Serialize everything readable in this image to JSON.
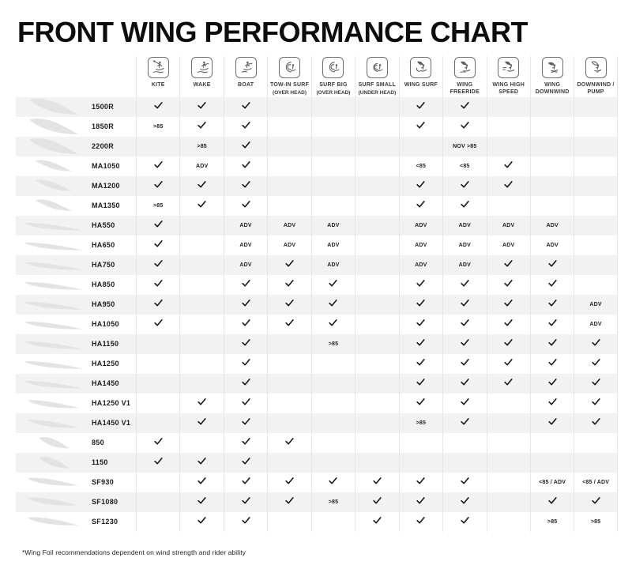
{
  "title": "FRONT WING PERFORMANCE CHART",
  "footnote": "*Wing Foil recommendations dependent on wind strength and rider ability",
  "colors": {
    "background": "#ffffff",
    "row_stripe": "#f2f2f2",
    "separator": "#e6e6e6",
    "check": "#151515",
    "icon": "#5f5f5f",
    "wing_silhouette": "#e3e3e3",
    "title_text": "#0d0d0d"
  },
  "columns": [
    {
      "key": "kite",
      "label": "KITE",
      "label_lines": [
        "KITE"
      ],
      "sublabel": "",
      "icon": "kite-icon"
    },
    {
      "key": "wake",
      "label": "WAKE",
      "label_lines": [
        "WAKE"
      ],
      "sublabel": "",
      "icon": "wake-icon"
    },
    {
      "key": "boat",
      "label": "BOAT",
      "label_lines": [
        "BOAT"
      ],
      "sublabel": "",
      "icon": "boat-icon"
    },
    {
      "key": "tow-in-surf",
      "label": "TOW-IN SURF",
      "label_lines": [
        "TOW-IN SURF"
      ],
      "sublabel": "(OVER HEAD)",
      "icon": "tow-in-surf-icon"
    },
    {
      "key": "surf-big",
      "label": "SURF BIG",
      "label_lines": [
        "SURF BIG"
      ],
      "sublabel": "(OVER HEAD)",
      "icon": "surf-big-icon"
    },
    {
      "key": "surf-small",
      "label": "SURF SMALL",
      "label_lines": [
        "SURF SMALL"
      ],
      "sublabel": "(UNDER HEAD)",
      "icon": "surf-small-icon"
    },
    {
      "key": "wing-surf",
      "label": "WING SURF",
      "label_lines": [
        "WING SURF"
      ],
      "sublabel": "",
      "icon": "wing-surf-icon"
    },
    {
      "key": "wing-freeride",
      "label": "WING FREERIDE",
      "label_lines": [
        "WING",
        "FREERIDE"
      ],
      "sublabel": "",
      "icon": "wing-freeride-icon"
    },
    {
      "key": "wing-high-speed",
      "label": "WING HIGH SPEED",
      "label_lines": [
        "WING HIGH",
        "SPEED"
      ],
      "sublabel": "",
      "icon": "wing-high-speed-icon"
    },
    {
      "key": "wing-downwind",
      "label": "WING DOWNWIND",
      "label_lines": [
        "WING DOWNWIND"
      ],
      "sublabel": "",
      "icon": "wing-downwind-icon"
    },
    {
      "key": "downwind-pump",
      "label": "DOWNWIND / PUMP",
      "label_lines": [
        "DOWNWIND /",
        "PUMP"
      ],
      "sublabel": "",
      "icon": "downwind-pump-icon"
    }
  ],
  "rows": [
    {
      "model": "1500R",
      "wing_shape": "crescent-wide",
      "cells": [
        "✓",
        "✓",
        "✓",
        "",
        "",
        "",
        "✓",
        "✓",
        "",
        "",
        ""
      ]
    },
    {
      "model": "1850R",
      "wing_shape": "crescent-wide",
      "cells": [
        ">85",
        "✓",
        "✓",
        "",
        "",
        "",
        "✓",
        "✓",
        "",
        "",
        ""
      ]
    },
    {
      "model": "2200R",
      "wing_shape": "crescent-wide",
      "cells": [
        "",
        ">85",
        "✓",
        "",
        "",
        "",
        "",
        "NOV >85",
        "",
        "",
        ""
      ]
    },
    {
      "model": "MA1050",
      "wing_shape": "crescent-medium",
      "cells": [
        "✓",
        "ADV",
        "✓",
        "",
        "",
        "",
        "<85",
        "<85",
        "✓",
        "",
        ""
      ]
    },
    {
      "model": "MA1200",
      "wing_shape": "crescent-medium",
      "cells": [
        "✓",
        "✓",
        "✓",
        "",
        "",
        "",
        "✓",
        "✓",
        "✓",
        "",
        ""
      ]
    },
    {
      "model": "MA1350",
      "wing_shape": "crescent-medium",
      "cells": [
        ">85",
        "✓",
        "✓",
        "",
        "",
        "",
        "✓",
        "✓",
        "",
        "",
        ""
      ]
    },
    {
      "model": "HA550",
      "wing_shape": "blade-thin",
      "cells": [
        "✓",
        "",
        "ADV",
        "ADV",
        "ADV",
        "",
        "ADV",
        "ADV",
        "ADV",
        "ADV",
        ""
      ]
    },
    {
      "model": "HA650",
      "wing_shape": "blade-thin",
      "cells": [
        "✓",
        "",
        "ADV",
        "ADV",
        "ADV",
        "",
        "ADV",
        "ADV",
        "ADV",
        "ADV",
        ""
      ]
    },
    {
      "model": "HA750",
      "wing_shape": "blade-thin",
      "cells": [
        "✓",
        "",
        "ADV",
        "✓",
        "ADV",
        "",
        "ADV",
        "ADV",
        "✓",
        "✓",
        ""
      ]
    },
    {
      "model": "HA850",
      "wing_shape": "blade-thin",
      "cells": [
        "✓",
        "",
        "✓",
        "✓",
        "✓",
        "",
        "✓",
        "✓",
        "✓",
        "✓",
        ""
      ]
    },
    {
      "model": "HA950",
      "wing_shape": "blade-thin",
      "cells": [
        "✓",
        "",
        "✓",
        "✓",
        "✓",
        "",
        "✓",
        "✓",
        "✓",
        "✓",
        "ADV"
      ]
    },
    {
      "model": "HA1050",
      "wing_shape": "blade-thin",
      "cells": [
        "✓",
        "",
        "✓",
        "✓",
        "✓",
        "",
        "✓",
        "✓",
        "✓",
        "✓",
        "ADV"
      ]
    },
    {
      "model": "HA1150",
      "wing_shape": "blade-thin",
      "cells": [
        "",
        "",
        "✓",
        "",
        ">85",
        "",
        "✓",
        "✓",
        "✓",
        "✓",
        "✓"
      ]
    },
    {
      "model": "HA1250",
      "wing_shape": "blade-thin",
      "cells": [
        "",
        "",
        "✓",
        "",
        "",
        "",
        "✓",
        "✓",
        "✓",
        "✓",
        "✓"
      ]
    },
    {
      "model": "HA1450",
      "wing_shape": "blade-thin",
      "cells": [
        "",
        "",
        "✓",
        "",
        "",
        "",
        "✓",
        "✓",
        "✓",
        "✓",
        "✓"
      ]
    },
    {
      "model": "HA1250 V1",
      "wing_shape": "blade-medium",
      "cells": [
        "",
        "✓",
        "✓",
        "",
        "",
        "",
        "✓",
        "✓",
        "",
        "✓",
        "✓"
      ]
    },
    {
      "model": "HA1450 V1",
      "wing_shape": "blade-medium",
      "cells": [
        "",
        "✓",
        "✓",
        "",
        "",
        "",
        ">85",
        "✓",
        "",
        "✓",
        "✓"
      ]
    },
    {
      "model": "850",
      "wing_shape": "crescent-small",
      "cells": [
        "✓",
        "",
        "✓",
        "✓",
        "",
        "",
        "",
        "",
        "",
        "",
        ""
      ]
    },
    {
      "model": "1150",
      "wing_shape": "crescent-small",
      "cells": [
        "✓",
        "✓",
        "✓",
        "",
        "",
        "",
        "",
        "",
        "",
        "",
        ""
      ]
    },
    {
      "model": "SF930",
      "wing_shape": "blade-curved",
      "cells": [
        "",
        "✓",
        "✓",
        "✓",
        "✓",
        "✓",
        "✓",
        "✓",
        "",
        "<85 / ADV",
        "<85 / ADV"
      ]
    },
    {
      "model": "SF1080",
      "wing_shape": "blade-curved",
      "cells": [
        "",
        "✓",
        "✓",
        "✓",
        ">85",
        "✓",
        "✓",
        "✓",
        "",
        "✓",
        "✓"
      ]
    },
    {
      "model": "SF1230",
      "wing_shape": "blade-curved",
      "cells": [
        "",
        "✓",
        "✓",
        "",
        "",
        "✓",
        "✓",
        "✓",
        "",
        ">85",
        ">85"
      ]
    }
  ]
}
